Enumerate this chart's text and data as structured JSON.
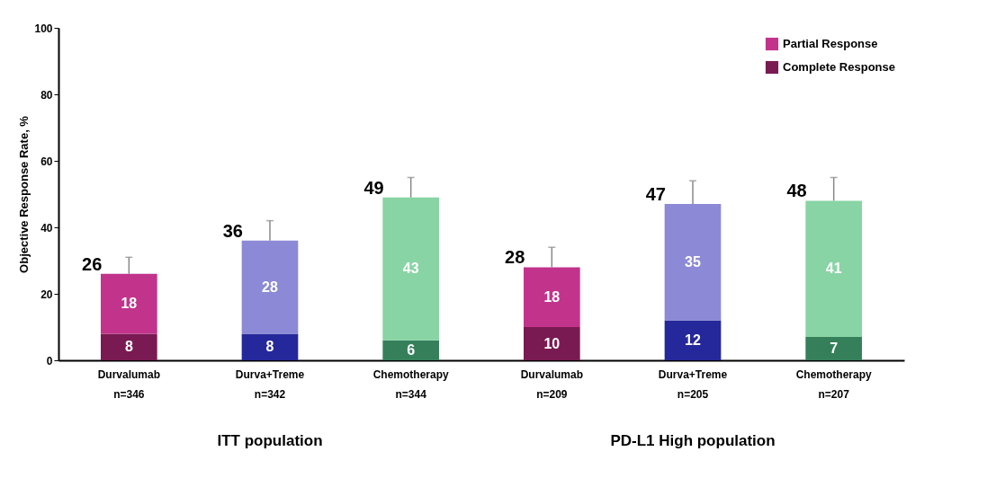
{
  "chart_data": {
    "type": "bar",
    "stacked": true,
    "ylabel": "Objective Response Rate, %",
    "categories": [
      "Durvalumab\nn=346",
      "Durva+Treme\nn=342",
      "Chemotherapy\nn=344",
      "Durvalumab\nn=209",
      "Durva+Treme\nn=205",
      "Chemotherapy\nn=207"
    ],
    "series": [
      {
        "name": "Complete Response",
        "colors": [
          "#7a1a52",
          "#25289a",
          "#35805a",
          "#7a1a52",
          "#25289a",
          "#35805a"
        ],
        "values": [
          8,
          8,
          6,
          10,
          12,
          7
        ]
      },
      {
        "name": "Partial Response",
        "colors": [
          "#c2338c",
          "#8c8ad6",
          "#88d4a4",
          "#c2338c",
          "#8c8ad6",
          "#88d4a4"
        ],
        "values": [
          18,
          28,
          43,
          18,
          35,
          41
        ],
        "errors": [
          [
            26,
            31
          ],
          [
            36,
            42
          ],
          [
            49,
            55
          ],
          [
            28,
            34
          ],
          [
            47,
            54
          ],
          [
            48,
            55
          ]
        ]
      }
    ],
    "totals": [
      "26",
      "36",
      "49",
      "28",
      "47",
      "48"
    ],
    "data_labels": true,
    "ylim": [
      0,
      100
    ],
    "yticks": [
      0,
      20,
      40,
      60,
      80,
      100
    ],
    "grid": false,
    "legend": "top right",
    "annotations": [
      "ITT population",
      "PD-L1 High population"
    ]
  }
}
